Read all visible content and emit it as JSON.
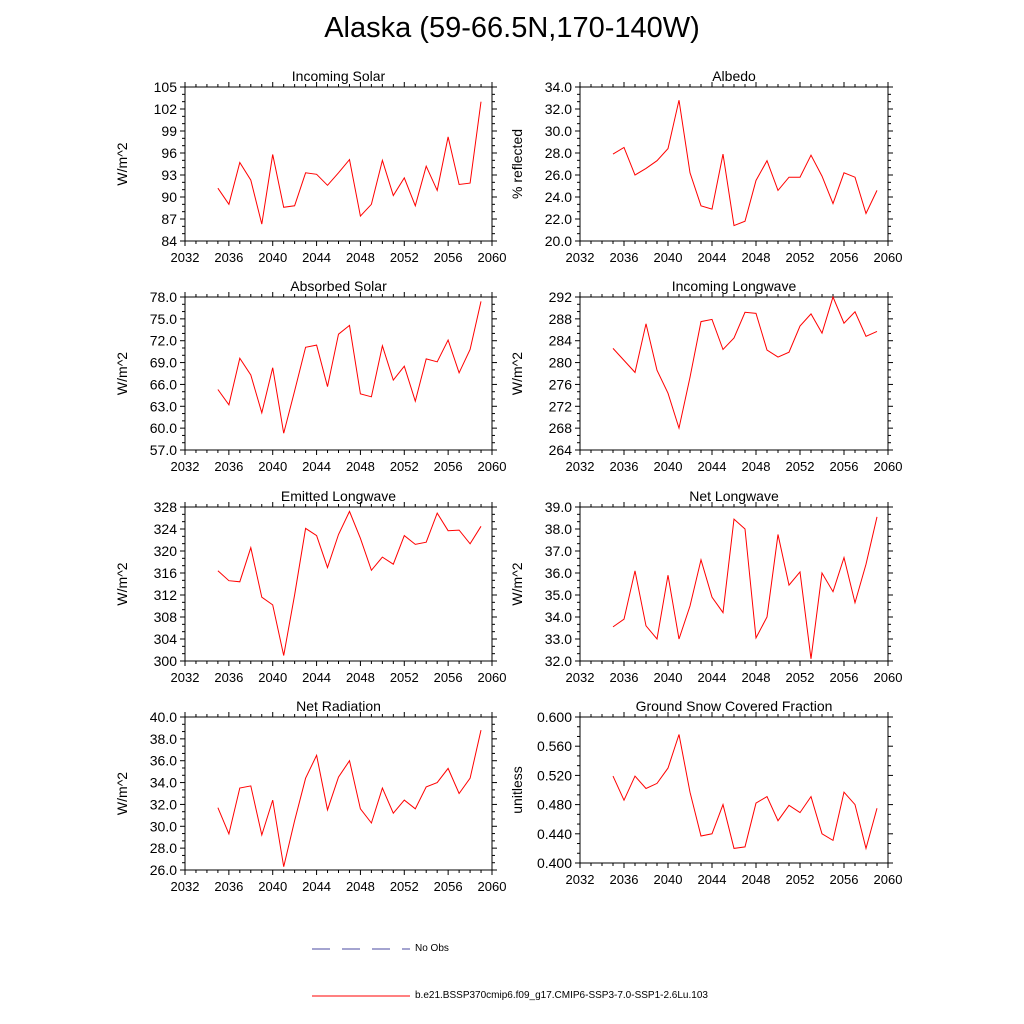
{
  "title": "Alaska (59-66.5N,170-140W)",
  "colors": {
    "series": "#ff0000",
    "obs": "#4a4aa0",
    "axis": "#000000"
  },
  "legend": {
    "obs_label": "No Obs",
    "model_label": "b.e21.BSSP370cmip6.f09_g17.CMIP6-SSP3-7.0-SSP1-2.6Lu.103"
  },
  "chart_data": [
    {
      "type": "line",
      "title": "Incoming Solar",
      "xlabel": "",
      "ylabel": "W/m^2",
      "xlim": [
        2032,
        2060
      ],
      "ylim": [
        84,
        105
      ],
      "xticks": [
        2032,
        2036,
        2040,
        2044,
        2048,
        2052,
        2056,
        2060
      ],
      "xticklabels": [
        "2032",
        "2036",
        "2040",
        "2044",
        "2048",
        "2052",
        "2056",
        "2060"
      ],
      "yticks": [
        84,
        87,
        90,
        93,
        96,
        99,
        102,
        105
      ],
      "yticklabels": [
        "84",
        "87",
        "90",
        "93",
        "96",
        "99",
        "102",
        "105"
      ],
      "x": [
        2035,
        2036,
        2037,
        2038,
        2039,
        2040,
        2041,
        2042,
        2043,
        2044,
        2045,
        2046,
        2047,
        2048,
        2049,
        2050,
        2051,
        2052,
        2053,
        2054,
        2055,
        2056,
        2057,
        2058,
        2059
      ],
      "values": [
        91.2,
        89.0,
        94.7,
        92.3,
        86.3,
        95.8,
        88.6,
        88.8,
        93.3,
        93.1,
        91.6,
        93.3,
        95.1,
        87.4,
        89.0,
        95.0,
        90.2,
        92.6,
        88.8,
        94.2,
        90.9,
        98.2,
        91.7,
        91.9,
        103.0
      ]
    },
    {
      "type": "line",
      "title": "Albedo",
      "xlabel": "",
      "ylabel": "% reflected",
      "xlim": [
        2032,
        2060
      ],
      "ylim": [
        20,
        34
      ],
      "xticks": [
        2032,
        2036,
        2040,
        2044,
        2048,
        2052,
        2056,
        2060
      ],
      "xticklabels": [
        "2032",
        "2036",
        "2040",
        "2044",
        "2048",
        "2052",
        "2056",
        "2060"
      ],
      "yticks": [
        20,
        22,
        24,
        26,
        28,
        30,
        32,
        34
      ],
      "yticklabels": [
        "20.0",
        "22.0",
        "24.0",
        "26.0",
        "28.0",
        "30.0",
        "32.0",
        "34.0"
      ],
      "x": [
        2035,
        2036,
        2037,
        2038,
        2039,
        2040,
        2041,
        2042,
        2043,
        2044,
        2045,
        2046,
        2047,
        2048,
        2049,
        2050,
        2051,
        2052,
        2053,
        2054,
        2055,
        2056,
        2057,
        2058,
        2059
      ],
      "values": [
        27.9,
        28.5,
        26.0,
        26.6,
        27.3,
        28.4,
        32.8,
        26.2,
        23.2,
        22.9,
        27.9,
        21.4,
        21.8,
        25.5,
        27.3,
        24.6,
        25.8,
        25.8,
        27.8,
        25.9,
        23.4,
        26.2,
        25.8,
        22.5,
        24.6
      ]
    },
    {
      "type": "line",
      "title": "Absorbed Solar",
      "xlabel": "",
      "ylabel": "W/m^2",
      "xlim": [
        2032,
        2060
      ],
      "ylim": [
        57,
        78
      ],
      "xticks": [
        2032,
        2036,
        2040,
        2044,
        2048,
        2052,
        2056,
        2060
      ],
      "xticklabels": [
        "2032",
        "2036",
        "2040",
        "2044",
        "2048",
        "2052",
        "2056",
        "2060"
      ],
      "yticks": [
        57,
        60,
        63,
        66,
        69,
        72,
        75,
        78
      ],
      "yticklabels": [
        "57.0",
        "60.0",
        "63.0",
        "66.0",
        "69.0",
        "72.0",
        "75.0",
        "78.0"
      ],
      "x": [
        2035,
        2036,
        2037,
        2038,
        2039,
        2040,
        2041,
        2042,
        2043,
        2044,
        2045,
        2046,
        2047,
        2048,
        2049,
        2050,
        2051,
        2052,
        2053,
        2054,
        2055,
        2056,
        2057,
        2058,
        2059
      ],
      "values": [
        65.3,
        63.2,
        69.6,
        67.3,
        62.1,
        68.3,
        59.3,
        65.1,
        71.1,
        71.4,
        65.7,
        72.9,
        74.1,
        64.7,
        64.3,
        71.3,
        66.6,
        68.5,
        63.7,
        69.5,
        69.1,
        72.1,
        67.6,
        70.8,
        77.4
      ]
    },
    {
      "type": "line",
      "title": "Incoming Longwave",
      "xlabel": "",
      "ylabel": "W/m^2",
      "xlim": [
        2032,
        2060
      ],
      "ylim": [
        264,
        292
      ],
      "xticks": [
        2032,
        2036,
        2040,
        2044,
        2048,
        2052,
        2056,
        2060
      ],
      "xticklabels": [
        "2032",
        "2036",
        "2040",
        "2044",
        "2048",
        "2052",
        "2056",
        "2060"
      ],
      "yticks": [
        264,
        268,
        272,
        276,
        280,
        284,
        288,
        292
      ],
      "yticklabels": [
        "264",
        "268",
        "272",
        "276",
        "280",
        "284",
        "288",
        "292"
      ],
      "x": [
        2035,
        2036,
        2037,
        2038,
        2039,
        2040,
        2041,
        2042,
        2043,
        2044,
        2045,
        2046,
        2047,
        2048,
        2049,
        2050,
        2051,
        2052,
        2053,
        2054,
        2055,
        2056,
        2057,
        2058,
        2059
      ],
      "values": [
        282.6,
        280.4,
        278.2,
        287.1,
        278.6,
        274.4,
        268.0,
        277.3,
        287.5,
        287.9,
        282.4,
        284.5,
        289.2,
        289.0,
        282.3,
        281.0,
        281.9,
        286.7,
        288.9,
        285.4,
        292.0,
        287.2,
        289.3,
        284.8,
        285.7
      ]
    },
    {
      "type": "line",
      "title": "Emitted Longwave",
      "xlabel": "",
      "ylabel": "W/m^2",
      "xlim": [
        2032,
        2060
      ],
      "ylim": [
        300,
        328
      ],
      "xticks": [
        2032,
        2036,
        2040,
        2044,
        2048,
        2052,
        2056,
        2060
      ],
      "xticklabels": [
        "2032",
        "2036",
        "2040",
        "2044",
        "2048",
        "2052",
        "2056",
        "2060"
      ],
      "yticks": [
        300,
        304,
        308,
        312,
        316,
        320,
        324,
        328
      ],
      "yticklabels": [
        "300",
        "304",
        "308",
        "312",
        "316",
        "320",
        "324",
        "328"
      ],
      "x": [
        2035,
        2036,
        2037,
        2038,
        2039,
        2040,
        2041,
        2042,
        2043,
        2044,
        2045,
        2046,
        2047,
        2048,
        2049,
        2050,
        2051,
        2052,
        2053,
        2054,
        2055,
        2056,
        2057,
        2058,
        2059
      ],
      "values": [
        316.4,
        314.6,
        314.4,
        320.6,
        311.6,
        310.2,
        301.0,
        312.0,
        324.1,
        322.8,
        317.0,
        323.0,
        327.2,
        322.3,
        316.5,
        318.9,
        317.6,
        322.8,
        321.2,
        321.6,
        326.9,
        323.7,
        323.8,
        321.3,
        324.5
      ]
    },
    {
      "type": "line",
      "title": "Net Longwave",
      "xlabel": "",
      "ylabel": "W/m^2",
      "xlim": [
        2032,
        2060
      ],
      "ylim": [
        32,
        39
      ],
      "xticks": [
        2032,
        2036,
        2040,
        2044,
        2048,
        2052,
        2056,
        2060
      ],
      "xticklabels": [
        "2032",
        "2036",
        "2040",
        "2044",
        "2048",
        "2052",
        "2056",
        "2060"
      ],
      "yticks": [
        32,
        33,
        34,
        35,
        36,
        37,
        38,
        39
      ],
      "yticklabels": [
        "32.0",
        "33.0",
        "34.0",
        "35.0",
        "36.0",
        "37.0",
        "38.0",
        "39.0"
      ],
      "x": [
        2035,
        2036,
        2037,
        2038,
        2039,
        2040,
        2041,
        2042,
        2043,
        2044,
        2045,
        2046,
        2047,
        2048,
        2049,
        2050,
        2051,
        2052,
        2053,
        2054,
        2055,
        2056,
        2057,
        2058,
        2059
      ],
      "values": [
        33.55,
        33.9,
        36.1,
        33.6,
        33.0,
        35.9,
        33.0,
        34.5,
        36.6,
        34.9,
        34.2,
        38.45,
        38.0,
        33.05,
        34.0,
        37.75,
        35.45,
        36.05,
        32.1,
        36.0,
        35.15,
        36.7,
        34.65,
        36.4,
        38.55
      ]
    },
    {
      "type": "line",
      "title": "Net Radiation",
      "xlabel": "",
      "ylabel": "W/m^2",
      "xlim": [
        2032,
        2060
      ],
      "ylim": [
        26,
        40
      ],
      "xticks": [
        2032,
        2036,
        2040,
        2044,
        2048,
        2052,
        2056,
        2060
      ],
      "xticklabels": [
        "2032",
        "2036",
        "2040",
        "2044",
        "2048",
        "2052",
        "2056",
        "2060"
      ],
      "yticks": [
        26,
        28,
        30,
        32,
        34,
        36,
        38,
        40
      ],
      "yticklabels": [
        "26.0",
        "28.0",
        "30.0",
        "32.0",
        "34.0",
        "36.0",
        "38.0",
        "40.0"
      ],
      "x": [
        2035,
        2036,
        2037,
        2038,
        2039,
        2040,
        2041,
        2042,
        2043,
        2044,
        2045,
        2046,
        2047,
        2048,
        2049,
        2050,
        2051,
        2052,
        2053,
        2054,
        2055,
        2056,
        2057,
        2058,
        2059
      ],
      "values": [
        31.7,
        29.3,
        33.5,
        33.7,
        29.2,
        32.4,
        26.3,
        30.5,
        34.4,
        36.5,
        31.5,
        34.5,
        36.0,
        31.6,
        30.3,
        33.5,
        31.2,
        32.4,
        31.6,
        33.6,
        34.0,
        35.3,
        33.0,
        34.4,
        38.8
      ]
    },
    {
      "type": "line",
      "title": "Ground Snow Covered Fraction",
      "xlabel": "",
      "ylabel": "unitless",
      "xlim": [
        2032,
        2060
      ],
      "ylim": [
        0.4,
        0.6
      ],
      "xticks": [
        2032,
        2036,
        2040,
        2044,
        2048,
        2052,
        2056,
        2060
      ],
      "xticklabels": [
        "2032",
        "2036",
        "2040",
        "2044",
        "2048",
        "2052",
        "2056",
        "2060"
      ],
      "yticks": [
        0.4,
        0.44,
        0.48,
        0.52,
        0.56,
        0.6
      ],
      "yticklabels": [
        "0.400",
        "0.440",
        "0.480",
        "0.520",
        "0.560",
        "0.600"
      ],
      "x": [
        2035,
        2036,
        2037,
        2038,
        2039,
        2040,
        2041,
        2042,
        2043,
        2044,
        2045,
        2046,
        2047,
        2048,
        2049,
        2050,
        2051,
        2052,
        2053,
        2054,
        2055,
        2056,
        2057,
        2058,
        2059
      ],
      "values": [
        0.519,
        0.486,
        0.519,
        0.502,
        0.509,
        0.53,
        0.576,
        0.497,
        0.437,
        0.44,
        0.48,
        0.42,
        0.422,
        0.482,
        0.491,
        0.458,
        0.479,
        0.469,
        0.491,
        0.44,
        0.431,
        0.497,
        0.48,
        0.42,
        0.475
      ]
    }
  ]
}
